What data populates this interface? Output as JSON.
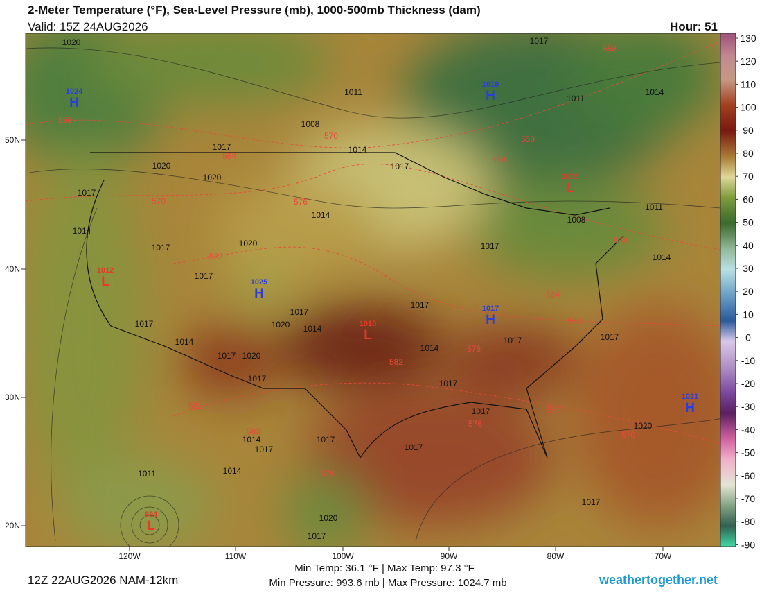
{
  "header": {
    "title": "2-Meter Temperature (°F), Sea-Level Pressure (mb), 1000-500mb Thickness (dam)",
    "valid": "Valid: 15Z 24AUG2026",
    "hour": "Hour: 51"
  },
  "map": {
    "lon_labels": [
      "120W",
      "110W",
      "100W",
      "90W",
      "80W",
      "70W"
    ],
    "lat_labels": [
      "50N",
      "40N",
      "30N",
      "20N"
    ],
    "pressure_centers": [
      {
        "symbol": "H",
        "value": "1024"
      },
      {
        "symbol": "H",
        "value": "1019"
      },
      {
        "symbol": "L",
        "value": "1006"
      },
      {
        "symbol": "L",
        "value": "1012"
      },
      {
        "symbol": "H",
        "value": "1025"
      },
      {
        "symbol": "H",
        "value": "1017"
      },
      {
        "symbol": "L",
        "value": "1010"
      },
      {
        "symbol": "H",
        "value": "1021"
      },
      {
        "symbol": "L",
        "value": "994"
      }
    ],
    "isobar_labels": [
      "1020",
      "1017",
      "1014",
      "1011",
      "1011",
      "1008",
      "1014",
      "1017",
      "1020",
      "1017",
      "1020",
      "1017",
      "1014",
      "1011",
      "1008",
      "1014",
      "1017",
      "1020",
      "1017",
      "1014",
      "1017",
      "1017",
      "1017",
      "1020",
      "1014",
      "1017",
      "1014",
      "1014",
      "1017",
      "1017",
      "1017",
      "1020",
      "1017",
      "1017",
      "1017",
      "1020",
      "1017",
      "1017",
      "1014",
      "1017",
      "1014",
      "1011",
      "1017",
      "1020",
      "1017"
    ],
    "thickness_labels": [
      "558",
      "558",
      "570",
      "564",
      "558",
      "558",
      "570",
      "576",
      "582",
      "558",
      "564",
      "570",
      "576",
      "582",
      "582",
      "582",
      "576",
      "576",
      "576",
      "570"
    ]
  },
  "colorbar": {
    "ticks": [
      130,
      120,
      110,
      100,
      90,
      80,
      70,
      60,
      50,
      40,
      30,
      20,
      10,
      0,
      -10,
      -20,
      -30,
      -40,
      -50,
      -60,
      -70,
      -80,
      -90
    ]
  },
  "footer": {
    "run": "12Z 22AUG2026 NAM-12km",
    "temps": "Min Temp:  36.1 °F | Max Temp:  97.3 °F",
    "pressures": "Min Pressure: 993.6 mb | Max Pressure: 1024.7 mb",
    "site": "weathertogether.net"
  }
}
